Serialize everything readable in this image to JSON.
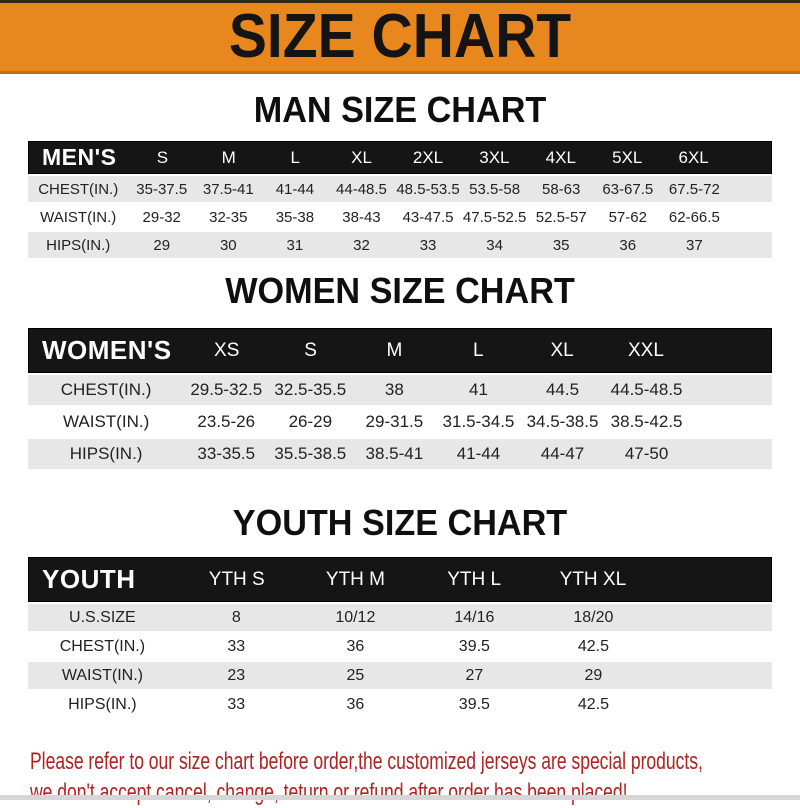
{
  "banner": {
    "title": "SIZE CHART"
  },
  "tables": [
    {
      "title": "MAN SIZE CHART",
      "label": "MEN'S",
      "columns": [
        "S",
        "M",
        "L",
        "XL",
        "2XL",
        "3XL",
        "4XL",
        "5XL",
        "6XL"
      ],
      "rows": [
        {
          "label": "CHEST(IN.)",
          "values": [
            "35-37.5",
            "37.5-41",
            "41-44",
            "44-48.5",
            "48.5-53.5",
            "53.5-58",
            "58-63",
            "63-67.5",
            "67.5-72"
          ]
        },
        {
          "label": "WAIST(IN.)",
          "values": [
            "29-32",
            "32-35",
            "35-38",
            "38-43",
            "43-47.5",
            "47.5-52.5",
            "52.5-57",
            "57-62",
            "62-66.5"
          ]
        },
        {
          "label": "HIPS(IN.)",
          "values": [
            "29",
            "30",
            "31",
            "32",
            "33",
            "34",
            "35",
            "36",
            "37"
          ]
        }
      ]
    },
    {
      "title": "WOMEN SIZE CHART",
      "label": "WOMEN'S",
      "columns": [
        "XS",
        "S",
        "M",
        "L",
        "XL",
        "XXL"
      ],
      "rows": [
        {
          "label": "CHEST(IN.)",
          "values": [
            "29.5-32.5",
            "32.5-35.5",
            "38",
            "41",
            "44.5",
            "44.5-48.5"
          ]
        },
        {
          "label": "WAIST(IN.)",
          "values": [
            "23.5-26",
            "26-29",
            "29-31.5",
            "31.5-34.5",
            "34.5-38.5",
            "38.5-42.5"
          ]
        },
        {
          "label": "HIPS(IN.)",
          "values": [
            "33-35.5",
            "35.5-38.5",
            "38.5-41",
            "41-44",
            "44-47",
            "47-50"
          ]
        }
      ]
    },
    {
      "title": "YOUTH SIZE CHART",
      "label": "YOUTH",
      "columns": [
        "YTH S",
        "YTH M",
        "YTH L",
        "YTH XL"
      ],
      "rows": [
        {
          "label": "U.S.SIZE",
          "values": [
            "8",
            "10/12",
            "14/16",
            "18/20"
          ]
        },
        {
          "label": "CHEST(IN.)",
          "values": [
            "33",
            "36",
            "39.5",
            "42.5"
          ]
        },
        {
          "label": "WAIST(IN.)",
          "values": [
            "23",
            "25",
            "27",
            "29"
          ]
        },
        {
          "label": "HIPS(IN.)",
          "values": [
            "33",
            "36",
            "39.5",
            "42.5"
          ]
        }
      ]
    }
  ],
  "footer": {
    "line1": "Please refer to our size chart before order,the customized jerseys are special products,",
    "line2": "we don't accept cancel, change, teturn or refund after order has been placed!"
  },
  "colors": {
    "banner_orange": "#E8871E",
    "banner_text": "#141414",
    "header_bar_black": "#151515",
    "row_gray": "#E7E7E7",
    "footer_red": "#B22222"
  }
}
